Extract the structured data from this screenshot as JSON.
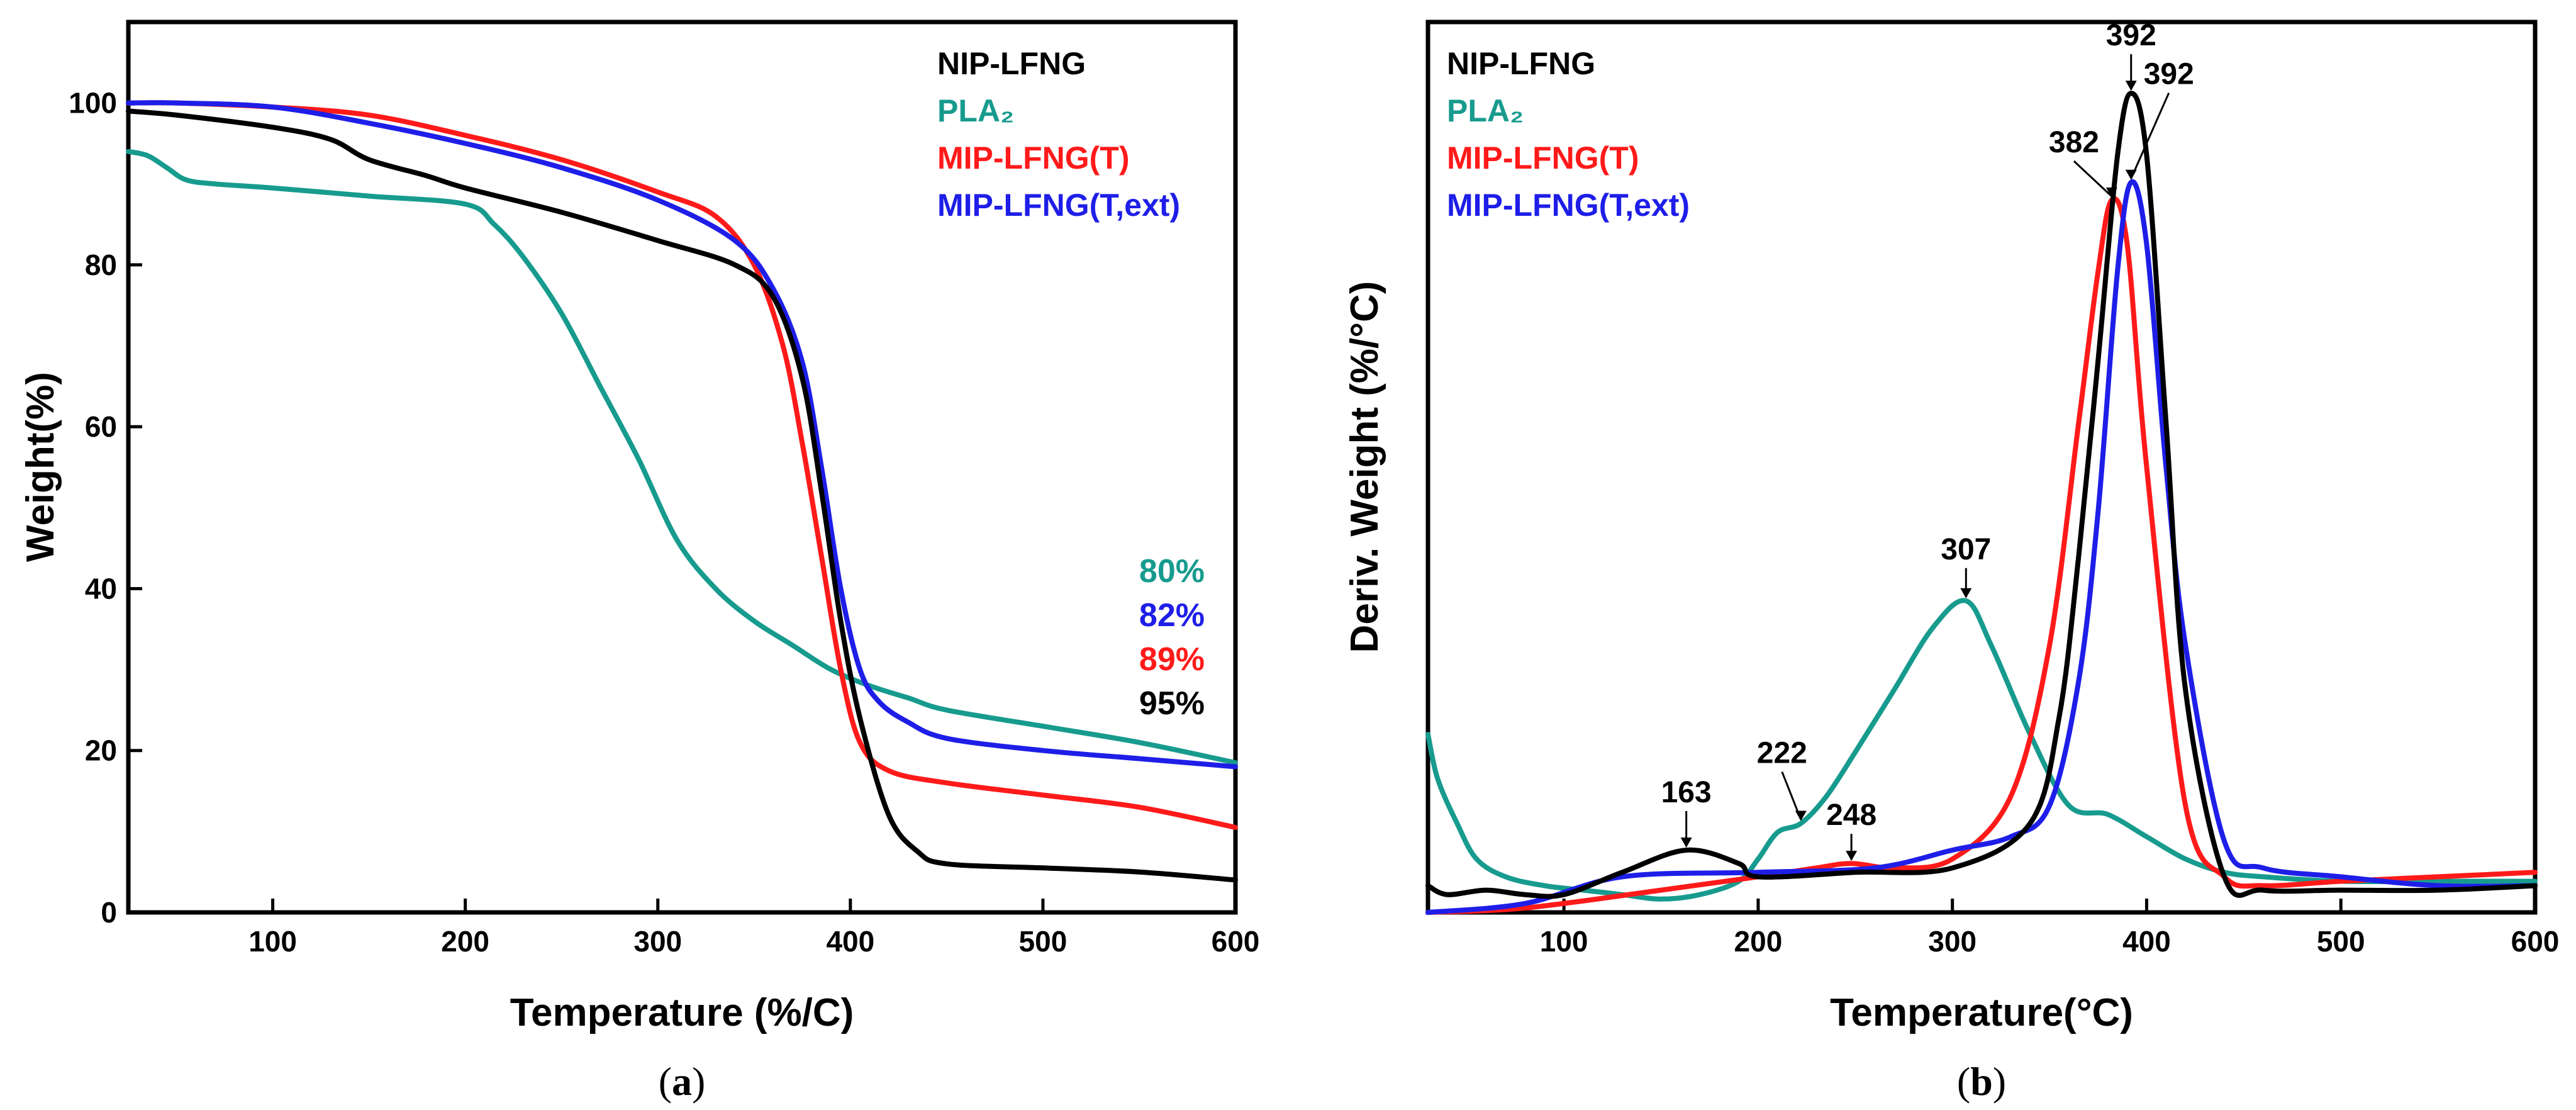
{
  "chart_data": [
    {
      "type": "line",
      "panel": "a",
      "caption_letter": "a",
      "xlabel": "Temperature (%/C)",
      "ylabel": "Weight(%)",
      "xlim": [
        25,
        600
      ],
      "ylim": [
        0,
        110
      ],
      "xticks": [
        100,
        200,
        300,
        400,
        500,
        600
      ],
      "yticks": [
        0,
        20,
        40,
        60,
        80,
        100
      ],
      "legend": [
        "NIP-LFNG",
        "PLA₂",
        "MIP-LFNG(T)",
        "MIP-LFNG(T,ext)"
      ],
      "colors": {
        "NIP-LFNG": "#000000",
        "PLA2": "#179B8E",
        "MIP-LFNG(T)": "#FF1A1A",
        "MIP-LFNG(T,ext)": "#1E1EE8"
      },
      "residue_labels": [
        {
          "text": "80%",
          "color": "#179B8E"
        },
        {
          "text": "82%",
          "color": "#1E1EE8"
        },
        {
          "text": "89%",
          "color": "#FF1A1A"
        },
        {
          "text": "95%",
          "color": "#000000"
        }
      ],
      "series": [
        {
          "name": "PLA2",
          "color": "#179B8E",
          "x": [
            25,
            35,
            45,
            55,
            70,
            100,
            150,
            200,
            215,
            230,
            250,
            270,
            290,
            310,
            330,
            350,
            370,
            390,
            410,
            430,
            450,
            500,
            550,
            600
          ],
          "y": [
            94,
            93.5,
            92,
            90.5,
            90,
            89.5,
            88.5,
            87.5,
            85,
            81,
            74,
            65,
            56,
            46,
            40,
            36,
            33,
            30,
            28,
            26.5,
            25,
            23,
            21,
            18.5
          ]
        },
        {
          "name": "MIP-LFNG(T)",
          "color": "#FF1A1A",
          "x": [
            25,
            50,
            100,
            150,
            200,
            250,
            300,
            330,
            350,
            365,
            375,
            385,
            395,
            405,
            420,
            450,
            500,
            550,
            600
          ],
          "y": [
            100,
            100,
            99.5,
            98.5,
            96,
            93,
            89,
            86,
            80,
            70,
            58,
            44,
            30,
            21,
            17.5,
            16,
            14.5,
            13,
            10.5
          ]
        },
        {
          "name": "MIP-LFNG(T,ext)",
          "color": "#1E1EE8",
          "x": [
            25,
            50,
            100,
            150,
            200,
            250,
            300,
            340,
            360,
            375,
            385,
            395,
            405,
            415,
            430,
            450,
            500,
            550,
            600
          ],
          "y": [
            100,
            100,
            99.5,
            97.5,
            95,
            92,
            88,
            83,
            77,
            68,
            55,
            40,
            30,
            26,
            23.5,
            21.5,
            20,
            19,
            18
          ]
        },
        {
          "name": "NIP-LFNG",
          "color": "#000000",
          "x": [
            25,
            50,
            100,
            130,
            150,
            180,
            200,
            250,
            300,
            340,
            360,
            375,
            385,
            395,
            405,
            420,
            435,
            450,
            500,
            550,
            600
          ],
          "y": [
            99,
            98.5,
            97,
            95.5,
            93,
            91,
            89.5,
            86.5,
            83,
            80,
            76,
            66,
            52,
            36,
            24,
            12,
            7.5,
            6,
            5.5,
            5,
            4
          ]
        }
      ]
    },
    {
      "type": "line",
      "panel": "b",
      "caption_letter": "b",
      "xlabel": "Temperature(°C)",
      "ylabel": "Deriv. Weight (%/°C)",
      "xlim": [
        30,
        600
      ],
      "ylim": [
        0,
        1
      ],
      "xticks": [
        100,
        200,
        300,
        400,
        500,
        600
      ],
      "legend": [
        "NIP-LFNG",
        "PLA₂",
        "MIP-LFNG(T)",
        "MIP-LFNG(T,ext)"
      ],
      "peak_annotations": [
        {
          "text": "392",
          "x": 392,
          "target_series": "NIP-LFNG"
        },
        {
          "text": "392",
          "x": 392,
          "target_series": "MIP-LFNG(T,ext)"
        },
        {
          "text": "382",
          "x": 382,
          "target_series": "MIP-LFNG(T)"
        },
        {
          "text": "307",
          "x": 307,
          "target_series": "PLA2"
        },
        {
          "text": "163",
          "x": 163,
          "target_series": "NIP-LFNG"
        },
        {
          "text": "222",
          "x": 222,
          "target_series": "PLA2"
        },
        {
          "text": "248",
          "x": 248,
          "target_series": "MIP-LFNG(T)"
        }
      ],
      "series": [
        {
          "name": "PLA2",
          "color": "#179B8E",
          "x": [
            30,
            35,
            45,
            55,
            70,
            90,
            110,
            130,
            150,
            170,
            190,
            200,
            210,
            222,
            235,
            250,
            270,
            290,
            307,
            320,
            340,
            360,
            380,
            400,
            420,
            440,
            460,
            500,
            550,
            600
          ],
          "y": [
            0.2,
            0.15,
            0.1,
            0.06,
            0.04,
            0.03,
            0.025,
            0.02,
            0.015,
            0.02,
            0.035,
            0.06,
            0.09,
            0.1,
            0.13,
            0.18,
            0.25,
            0.32,
            0.35,
            0.3,
            0.2,
            0.12,
            0.11,
            0.085,
            0.06,
            0.045,
            0.04,
            0.035,
            0.035,
            0.035
          ]
        },
        {
          "name": "MIP-LFNG(T)",
          "color": "#FF1A1A",
          "x": [
            30,
            80,
            150,
            200,
            230,
            248,
            270,
            300,
            330,
            350,
            365,
            375,
            382,
            390,
            400,
            420,
            440,
            460,
            500,
            550,
            600
          ],
          "y": [
            0.0,
            0.005,
            0.025,
            0.04,
            0.05,
            0.055,
            0.05,
            0.06,
            0.13,
            0.3,
            0.55,
            0.72,
            0.8,
            0.75,
            0.5,
            0.12,
            0.04,
            0.03,
            0.035,
            0.04,
            0.045
          ]
        },
        {
          "name": "MIP-LFNG(T,ext)",
          "color": "#1E1EE8",
          "x": [
            30,
            80,
            130,
            200,
            260,
            300,
            330,
            350,
            365,
            375,
            385,
            392,
            400,
            410,
            420,
            440,
            460,
            500,
            550,
            600
          ],
          "y": [
            0.0,
            0.01,
            0.04,
            0.045,
            0.05,
            0.07,
            0.085,
            0.12,
            0.26,
            0.45,
            0.72,
            0.82,
            0.75,
            0.5,
            0.3,
            0.08,
            0.05,
            0.04,
            0.03,
            0.03
          ]
        },
        {
          "name": "NIP-LFNG",
          "color": "#000000",
          "x": [
            30,
            40,
            60,
            80,
            100,
            130,
            163,
            190,
            200,
            250,
            300,
            340,
            355,
            365,
            375,
            385,
            392,
            400,
            410,
            420,
            440,
            460,
            500,
            550,
            600
          ],
          "y": [
            0.03,
            0.02,
            0.025,
            0.02,
            0.02,
            0.045,
            0.07,
            0.055,
            0.04,
            0.045,
            0.05,
            0.1,
            0.22,
            0.4,
            0.62,
            0.85,
            0.92,
            0.85,
            0.55,
            0.25,
            0.04,
            0.025,
            0.025,
            0.025,
            0.03
          ]
        }
      ]
    }
  ]
}
